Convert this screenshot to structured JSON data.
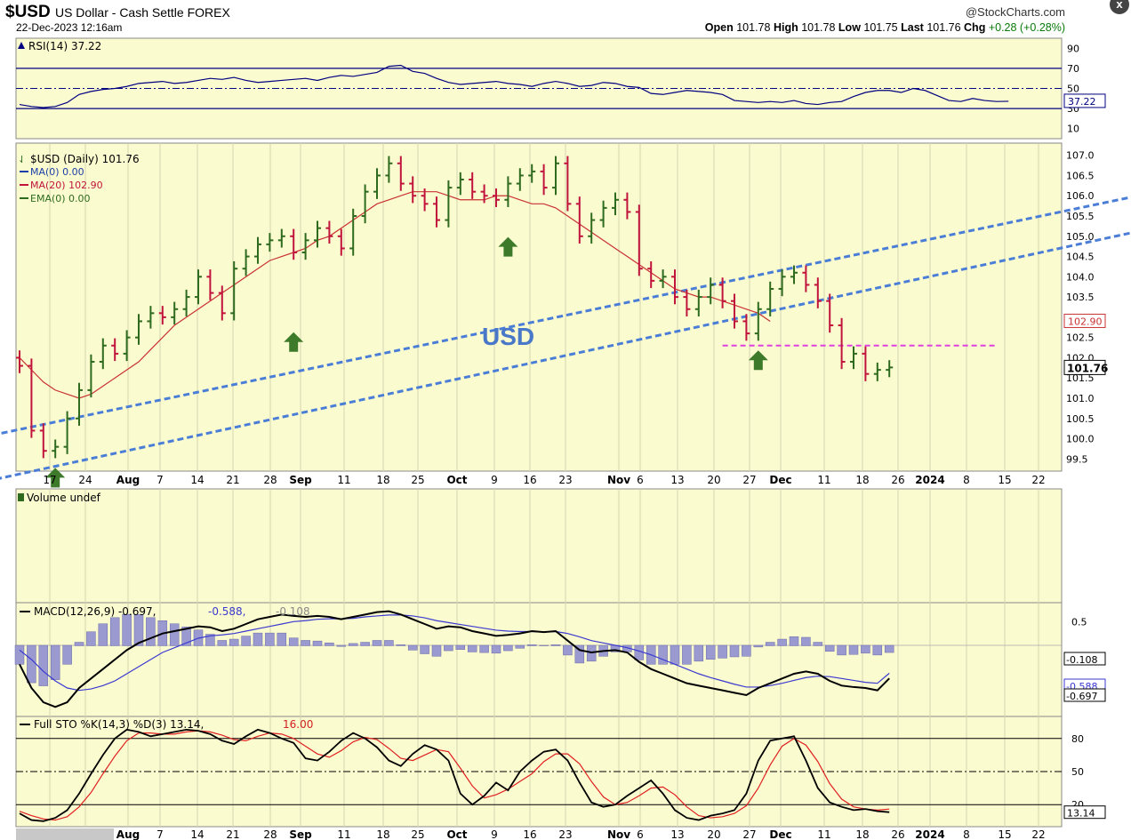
{
  "header": {
    "symbol": "$USD",
    "description": "US Dollar - Cash Settle FOREX",
    "date": "22-Dec-2023 12:16am",
    "brand": "@StockCharts.com",
    "open_label": "Open",
    "open": "101.78",
    "high_label": "High",
    "high": "101.78",
    "low_label": "Low",
    "low": "101.75",
    "last_label": "Last",
    "last": "101.76",
    "chg_label": "Chg",
    "chg": "+0.28 (+0.28%)",
    "close_button": "x"
  },
  "colors": {
    "panel_bg": "#fbfbd0",
    "up_bar": "#2e6b1e",
    "down_bar": "#c0143c",
    "ma20": "#c83232",
    "channel": "#4a7ed6",
    "support": "#e040e0",
    "arrow": "#3d7a2a",
    "usd_text": "#4a78c8"
  },
  "annotation": {
    "text": "USD"
  },
  "chart_data": [
    {
      "panel": "rsi",
      "type": "line",
      "label": "RSI(14) 37.22",
      "yticks": [
        10,
        30,
        50,
        70,
        90
      ],
      "ylim": [
        0,
        100
      ],
      "hlines": [
        70,
        50,
        30
      ],
      "last_value_label": "37.22",
      "values": [
        34,
        32,
        31,
        32,
        36,
        44,
        47,
        49,
        50,
        52,
        55,
        56,
        57,
        55,
        56,
        58,
        60,
        59,
        61,
        58,
        56,
        57,
        58,
        59,
        60,
        58,
        61,
        63,
        62,
        64,
        66,
        72,
        73,
        67,
        65,
        60,
        56,
        54,
        55,
        56,
        57,
        55,
        54,
        52,
        55,
        57,
        55,
        52,
        53,
        56,
        55,
        52,
        51,
        45,
        44,
        46,
        48,
        47,
        46,
        44,
        38,
        37,
        36,
        37,
        36,
        38,
        35,
        34,
        36,
        37,
        42,
        46,
        48,
        48,
        46,
        50,
        48,
        43,
        38,
        37,
        40,
        38,
        37,
        37.22
      ]
    },
    {
      "panel": "price",
      "type": "ohlc",
      "legend": [
        "$USD (Daily) 101.76",
        "MA(0) 0.00",
        "MA(20) 102.90",
        "EMA(0) 0.00"
      ],
      "yticks": [
        99.5,
        100.0,
        100.5,
        101.0,
        101.5,
        102.0,
        102.5,
        103.0,
        103.5,
        104.0,
        104.5,
        105.0,
        105.5,
        106.0,
        106.5,
        107.0
      ],
      "ylim": [
        99.2,
        107.3
      ],
      "last_price_label": "101.76",
      "ma20_label": "102.90",
      "x_tick_labels": [
        "17",
        "24",
        "Aug",
        "7",
        "14",
        "21",
        "28",
        "Sep",
        "11",
        "18",
        "25",
        "Oct",
        "9",
        "16",
        "23",
        "Nov",
        "6",
        "13",
        "20",
        "27",
        "Dec",
        "11",
        "18",
        "26",
        "2024",
        "8",
        "15",
        "22"
      ],
      "closes": [
        101.8,
        100.2,
        99.7,
        99.8,
        100.5,
        101.2,
        101.9,
        102.3,
        102.1,
        102.5,
        102.9,
        103.1,
        103.0,
        103.2,
        103.5,
        104.0,
        103.6,
        103.1,
        104.2,
        104.5,
        104.8,
        104.9,
        105.0,
        104.6,
        104.9,
        105.2,
        105.0,
        104.7,
        105.5,
        106.1,
        106.5,
        106.8,
        106.3,
        106.0,
        105.8,
        105.4,
        106.2,
        106.4,
        106.1,
        106.0,
        105.9,
        106.3,
        106.5,
        106.6,
        106.2,
        106.8,
        105.8,
        105.0,
        105.4,
        105.7,
        105.9,
        105.6,
        104.2,
        103.9,
        104.0,
        103.5,
        103.2,
        103.5,
        103.8,
        103.4,
        102.9,
        102.6,
        103.2,
        103.7,
        104.0,
        104.1,
        103.8,
        103.4,
        102.8,
        101.9,
        102.1,
        101.6,
        101.7,
        101.76
      ],
      "ma20": [
        102.0,
        101.7,
        101.4,
        101.2,
        101.1,
        101.0,
        101.1,
        101.3,
        101.5,
        101.7,
        101.9,
        102.2,
        102.5,
        102.8,
        103.0,
        103.2,
        103.4,
        103.6,
        103.8,
        104.0,
        104.2,
        104.4,
        104.5,
        104.6,
        104.7,
        104.9,
        105.0,
        105.2,
        105.4,
        105.6,
        105.8,
        105.9,
        106.0,
        106.1,
        106.1,
        106.1,
        106.0,
        105.9,
        105.9,
        105.9,
        106.0,
        106.0,
        105.9,
        105.8,
        105.8,
        105.7,
        105.5,
        105.3,
        105.1,
        104.9,
        104.7,
        104.5,
        104.3,
        104.1,
        103.9,
        103.7,
        103.6,
        103.5,
        103.5,
        103.4,
        103.3,
        103.2,
        103.1,
        102.9
      ],
      "support_level": 102.3,
      "channel_lower": [
        [
          -20,
          99.0
        ],
        [
          115,
          107.3
        ]
      ],
      "channel_upper": [
        [
          -2,
          99.0
        ],
        [
          128,
          107.3
        ]
      ]
    },
    {
      "panel": "volume",
      "type": "bar",
      "label": "Volume undef",
      "values": []
    },
    {
      "panel": "macd",
      "type": "line",
      "label": "MACD(12,26,9) -0.697,",
      "signal_label": "-0.588,",
      "hist_label": "-0.108",
      "yticks": [
        0.5
      ],
      "ylim": [
        -1.5,
        0.9
      ],
      "hist_value_label": "-0.108",
      "macd_value_label": "-0.697",
      "signal_value_label": "-0.588",
      "macd": [
        -0.4,
        -0.9,
        -1.2,
        -1.3,
        -1.2,
        -0.9,
        -0.7,
        -0.5,
        -0.3,
        -0.1,
        0.05,
        0.15,
        0.25,
        0.3,
        0.35,
        0.4,
        0.38,
        0.3,
        0.35,
        0.45,
        0.55,
        0.6,
        0.65,
        0.62,
        0.6,
        0.62,
        0.6,
        0.55,
        0.6,
        0.65,
        0.7,
        0.72,
        0.65,
        0.55,
        0.45,
        0.35,
        0.4,
        0.38,
        0.3,
        0.25,
        0.2,
        0.22,
        0.25,
        0.3,
        0.28,
        0.3,
        0.1,
        -0.1,
        -0.15,
        -0.12,
        -0.1,
        -0.15,
        -0.35,
        -0.5,
        -0.6,
        -0.7,
        -0.8,
        -0.85,
        -0.9,
        -0.95,
        -1.0,
        -1.05,
        -0.9,
        -0.8,
        -0.7,
        -0.6,
        -0.55,
        -0.6,
        -0.75,
        -0.85,
        -0.88,
        -0.9,
        -0.95,
        -0.697
      ],
      "signal": [
        -0.1,
        -0.3,
        -0.55,
        -0.75,
        -0.9,
        -0.95,
        -0.92,
        -0.85,
        -0.75,
        -0.6,
        -0.45,
        -0.3,
        -0.15,
        -0.05,
        0.05,
        0.15,
        0.2,
        0.22,
        0.25,
        0.3,
        0.35,
        0.4,
        0.45,
        0.5,
        0.52,
        0.55,
        0.56,
        0.56,
        0.57,
        0.6,
        0.62,
        0.64,
        0.64,
        0.62,
        0.58,
        0.52,
        0.48,
        0.44,
        0.4,
        0.36,
        0.32,
        0.3,
        0.29,
        0.29,
        0.28,
        0.29,
        0.25,
        0.18,
        0.1,
        0.05,
        0.0,
        -0.05,
        -0.12,
        -0.2,
        -0.3,
        -0.4,
        -0.5,
        -0.6,
        -0.68,
        -0.75,
        -0.82,
        -0.88,
        -0.88,
        -0.85,
        -0.8,
        -0.74,
        -0.68,
        -0.65,
        -0.66,
        -0.7,
        -0.74,
        -0.78,
        -0.8,
        -0.588
      ]
    },
    {
      "panel": "sto",
      "type": "line",
      "label": "Full STO %K(14,3) %D(3) 13.14,",
      "d_label": "16.00",
      "yticks": [
        20,
        50,
        80
      ],
      "ylim": [
        0,
        100
      ],
      "hlines": [
        80,
        50,
        20
      ],
      "last_value_label": "13.14",
      "k": [
        12,
        6,
        5,
        8,
        15,
        30,
        48,
        65,
        80,
        88,
        86,
        82,
        84,
        86,
        88,
        87,
        84,
        78,
        75,
        82,
        88,
        85,
        80,
        76,
        62,
        60,
        68,
        78,
        85,
        80,
        72,
        60,
        55,
        66,
        74,
        70,
        60,
        30,
        20,
        28,
        40,
        33,
        50,
        60,
        68,
        70,
        60,
        40,
        22,
        18,
        20,
        28,
        35,
        42,
        30,
        15,
        8,
        6,
        10,
        12,
        15,
        30,
        60,
        78,
        80,
        82,
        60,
        35,
        22,
        18,
        15,
        16,
        14,
        13.14
      ],
      "d": [
        14,
        10,
        7,
        6,
        9,
        18,
        31,
        48,
        64,
        78,
        85,
        85,
        84,
        84,
        86,
        87,
        86,
        83,
        79,
        78,
        82,
        85,
        84,
        80,
        73,
        66,
        63,
        69,
        77,
        81,
        79,
        71,
        62,
        60,
        65,
        70,
        68,
        53,
        37,
        26,
        29,
        34,
        41,
        48,
        59,
        66,
        66,
        57,
        41,
        27,
        20,
        22,
        28,
        35,
        36,
        29,
        18,
        10,
        8,
        9,
        12,
        19,
        35,
        56,
        73,
        80,
        74,
        59,
        39,
        25,
        18,
        16,
        15,
        16
      ]
    }
  ]
}
